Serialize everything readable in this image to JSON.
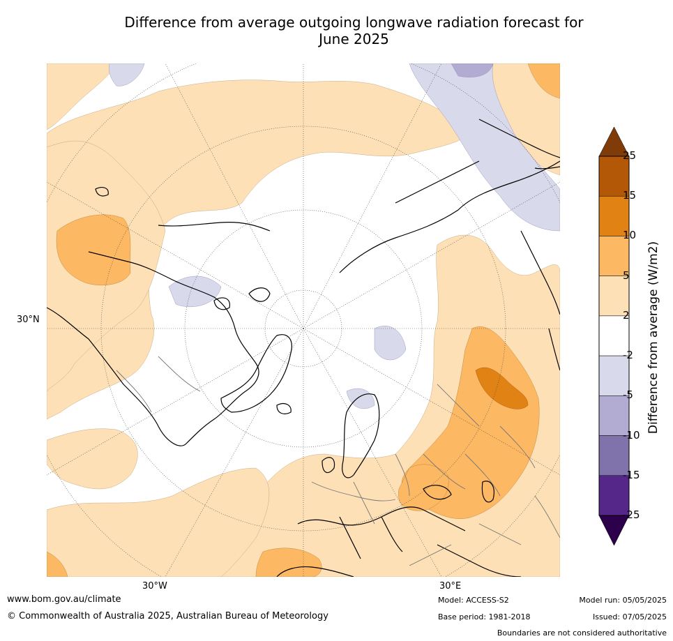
{
  "title_line1": "Difference from average outgoing longwave radiation forecast for",
  "title_line2": "June 2025",
  "map": {
    "latitude_labels": [
      "30°N"
    ],
    "longitude_labels": [
      "30°W",
      "30°E"
    ]
  },
  "colorbar": {
    "title": "Difference from average (W/m2)",
    "ticks": [
      "25",
      "15",
      "10",
      "5",
      "2",
      "-2",
      "-5",
      "-10",
      "-15",
      "-25"
    ],
    "bins": [
      {
        "range": "<-25",
        "color": "#2d004b"
      },
      {
        "range": "-25 to -15",
        "color": "#542788"
      },
      {
        "range": "-15 to -10",
        "color": "#8073ac"
      },
      {
        "range": "-10 to -5",
        "color": "#b2abd2"
      },
      {
        "range": "-5 to -2",
        "color": "#d8daeb"
      },
      {
        "range": "-2 to 2",
        "color": "#ffffff"
      },
      {
        "range": "2 to 5",
        "color": "#fee0b6"
      },
      {
        "range": "5 to 10",
        "color": "#fdb863"
      },
      {
        "range": "10 to 15",
        "color": "#e08214"
      },
      {
        "range": "15 to 25",
        "color": "#b35806"
      },
      {
        "range": ">25",
        "color": "#7f3b08"
      }
    ]
  },
  "footer": {
    "website": "www.bom.gov.au/climate",
    "copyright": "© Commonwealth of Australia 2025, Australian Bureau of Meteorology",
    "model": "Model: ACCESS-S2",
    "base_period": "Base period: 1981-2018",
    "model_run": "Model run: 05/05/2025",
    "issued": "Issued: 07/05/2025",
    "disclaimer": "Boundaries are not considered authoritative"
  }
}
